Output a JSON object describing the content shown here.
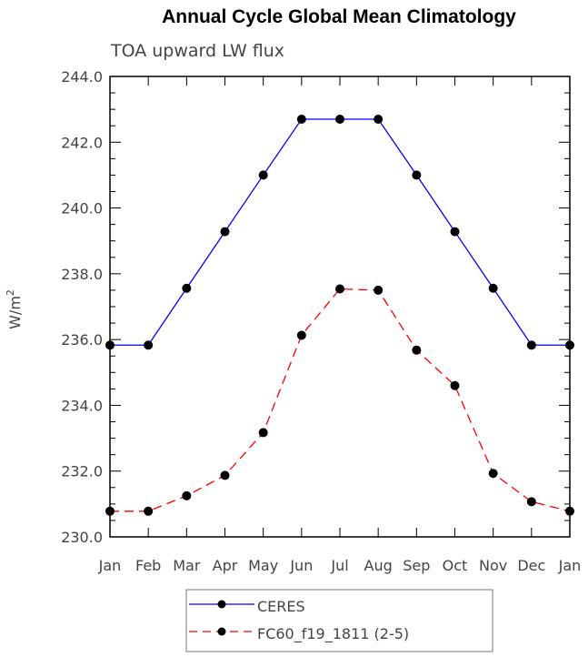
{
  "chart_data": {
    "type": "line",
    "title": "Annual Cycle Global Mean Climatology",
    "subtitle": "TOA upward LW flux",
    "ylabel": "W/m",
    "ylabel_sup": "2",
    "xlabel": "",
    "categories": [
      "Jan",
      "Feb",
      "Mar",
      "Apr",
      "May",
      "Jun",
      "Jul",
      "Aug",
      "Sep",
      "Oct",
      "Nov",
      "Dec",
      "Jan"
    ],
    "ylim": [
      230,
      244
    ],
    "yticks": [
      "230.0",
      "232.0",
      "234.0",
      "236.0",
      "238.0",
      "240.0",
      "242.0",
      "244.0"
    ],
    "grid": false,
    "legend_position": "bottom-center",
    "series": [
      {
        "name": "CERES",
        "color": "#0000ff",
        "dash": false,
        "values": [
          235.83,
          235.83,
          237.56,
          239.28,
          241.0,
          242.7,
          242.7,
          242.7,
          241.0,
          239.28,
          237.56,
          235.83,
          235.83
        ]
      },
      {
        "name": "FC60_f19_1811 (2-5)",
        "color": "#ff0000",
        "dash": true,
        "values": [
          230.78,
          230.78,
          231.25,
          231.87,
          233.17,
          236.13,
          237.54,
          237.5,
          235.68,
          234.6,
          231.93,
          231.07,
          230.78
        ]
      }
    ]
  }
}
